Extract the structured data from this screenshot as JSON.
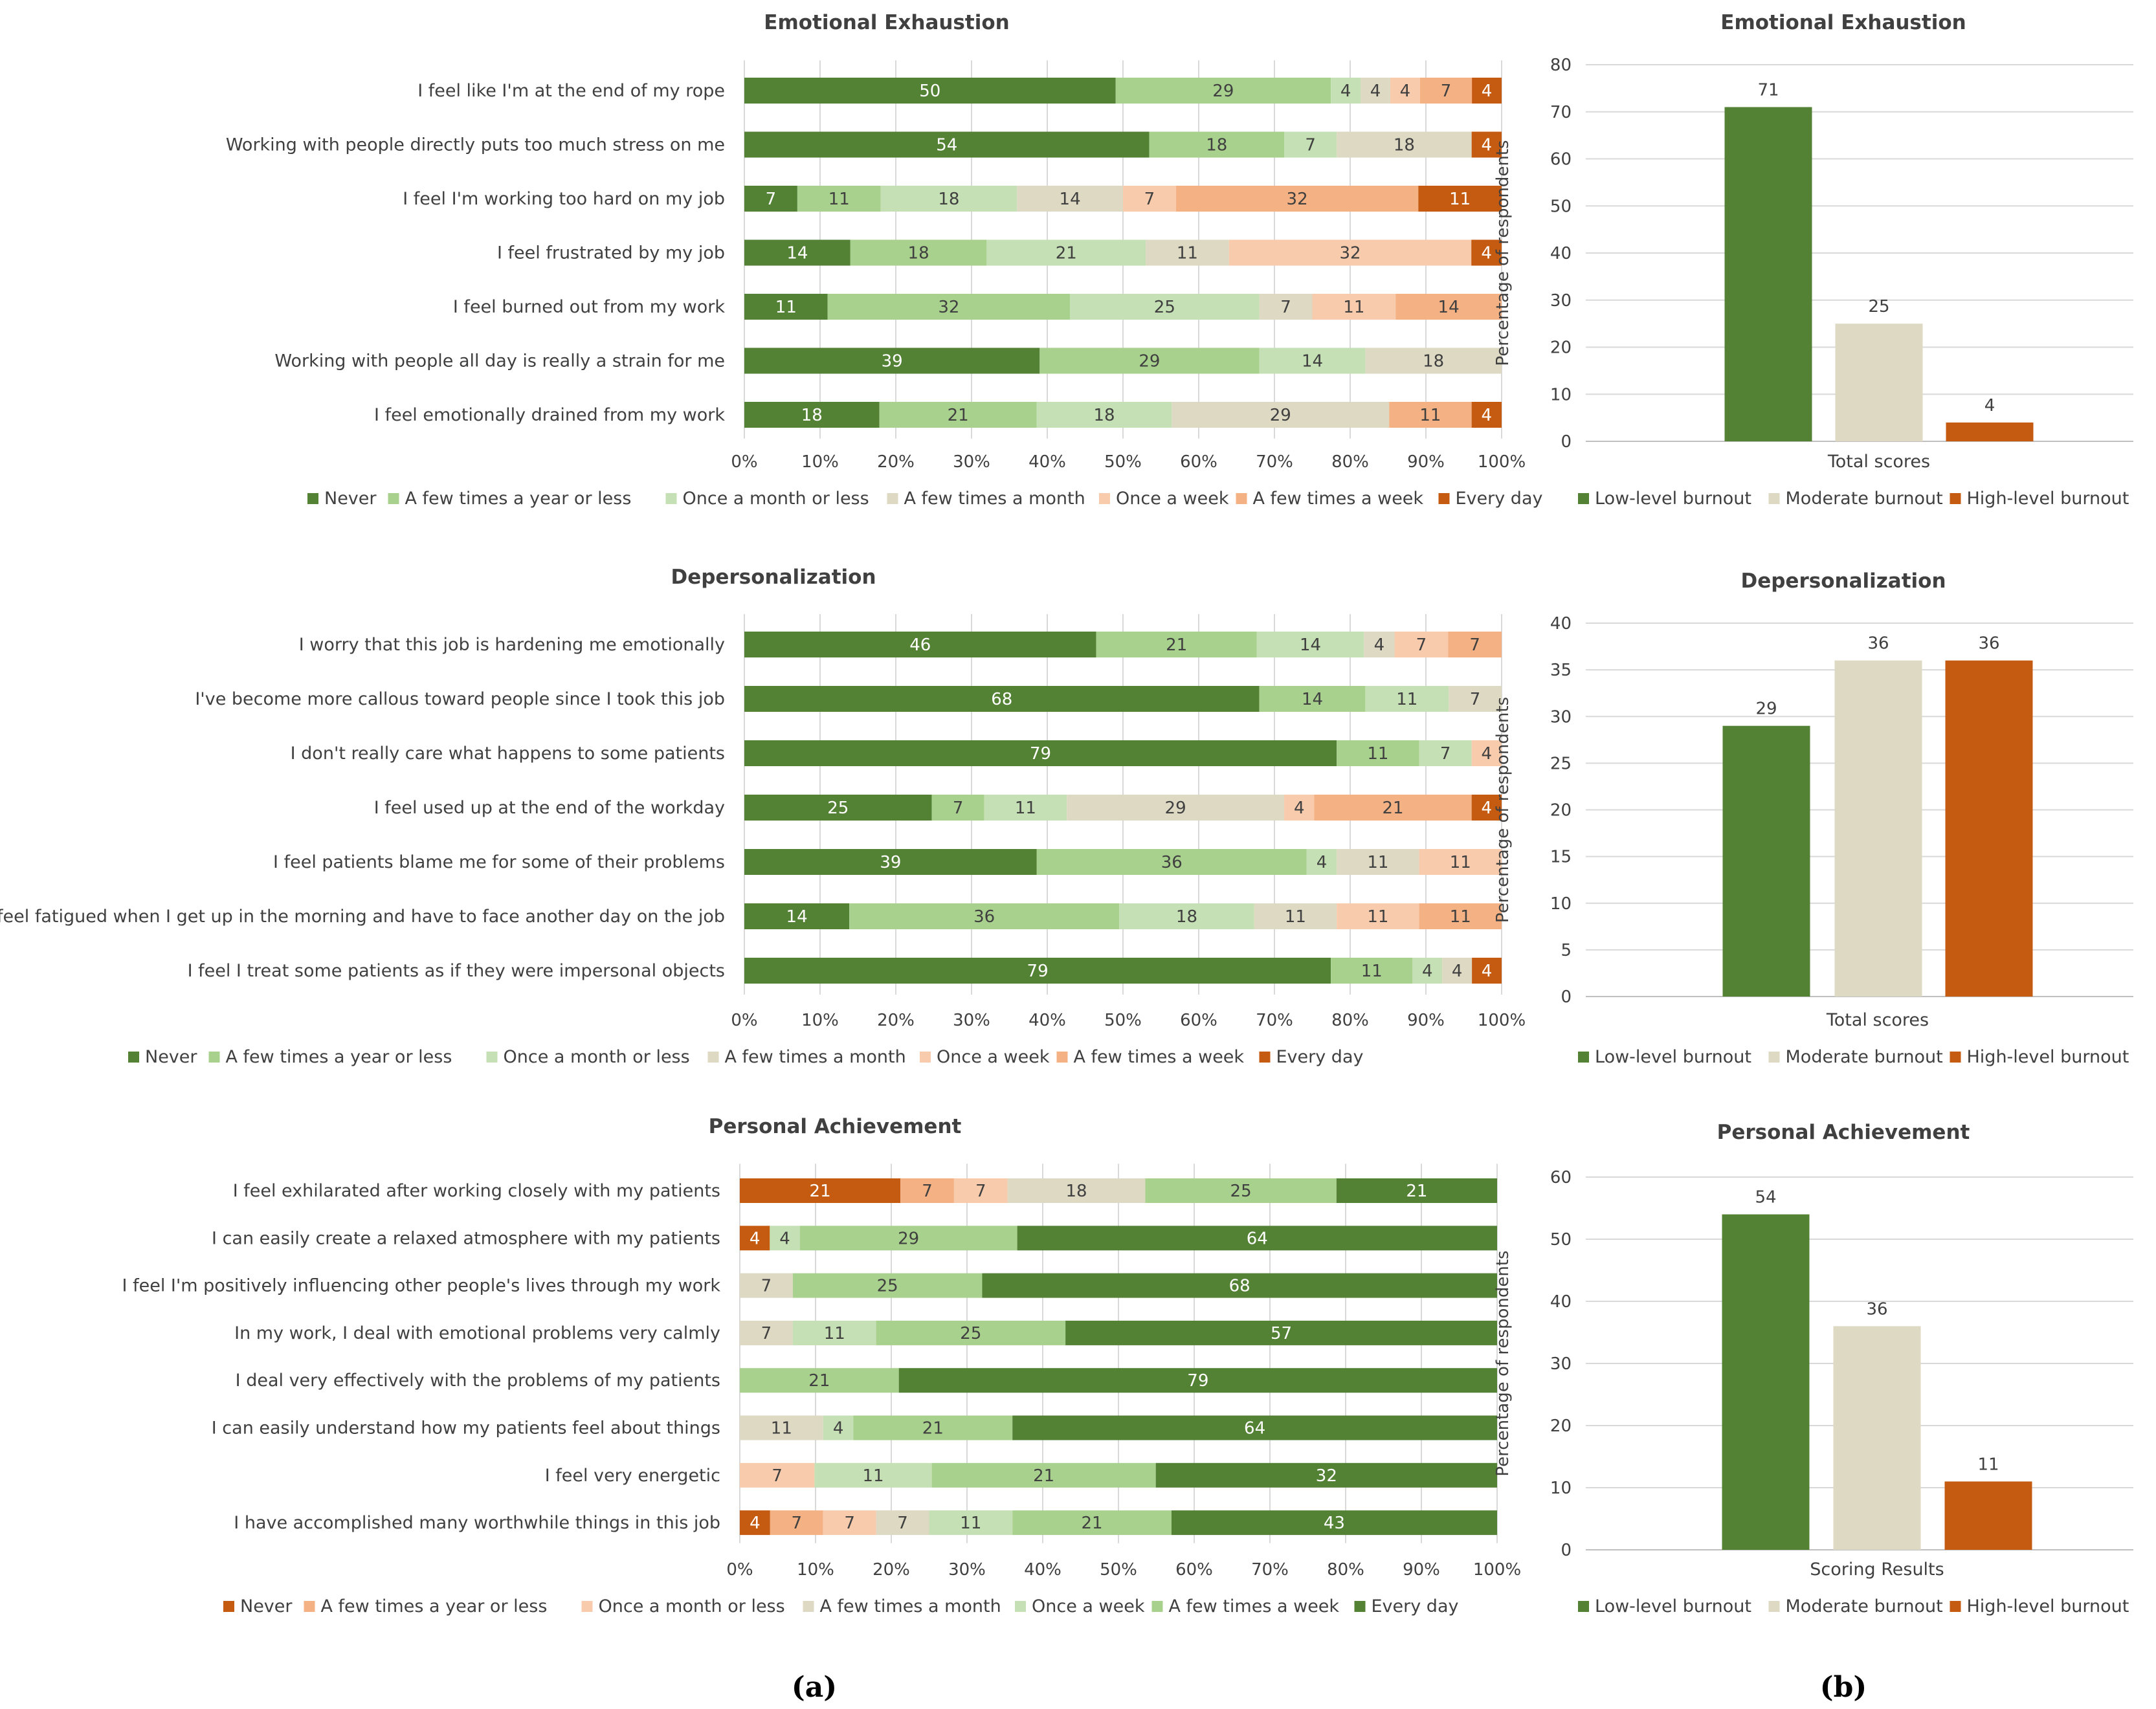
{
  "colors": {
    "c0": "#548235",
    "c1": "#a9d18e",
    "c2": "#c5e0b4",
    "c3": "#ddd9c3",
    "c4": "#f8cbad",
    "c5": "#f4b183",
    "c6": "#c55a11",
    "axis": "#bfbfbf",
    "grid": "#d9d9d9",
    "text": "#404040"
  },
  "panel_labels": {
    "a": "(a)",
    "b": "(b)"
  },
  "chart_data": [
    {
      "id": "ee_items",
      "type": "bar",
      "stacked": true,
      "orientation": "horizontal",
      "percent": true,
      "title": "Emotional Exhaustion",
      "categories": [
        "I feel like I'm at the end of my rope",
        "Working with people directly puts too much stress on me",
        "I feel I'm working too hard on my job",
        "I feel frustrated by my job",
        "I feel burned out from my work",
        "Working with people all day is really a strain for me",
        "I feel emotionally drained from my work"
      ],
      "series": [
        {
          "name": "Never",
          "color": "#548235",
          "values": [
            50,
            54,
            7,
            14,
            11,
            39,
            18
          ]
        },
        {
          "name": "A few times a year or less",
          "color": "#a9d18e",
          "values": [
            29,
            18,
            11,
            18,
            32,
            29,
            21
          ]
        },
        {
          "name": "Once a month or less",
          "color": "#c5e0b4",
          "values": [
            4,
            7,
            18,
            21,
            25,
            14,
            18
          ]
        },
        {
          "name": "A few times a month",
          "color": "#ddd9c3",
          "values": [
            4,
            18,
            14,
            11,
            7,
            18,
            29
          ]
        },
        {
          "name": "Once a week",
          "color": "#f8cbad",
          "values": [
            4,
            0,
            7,
            32,
            11,
            0,
            0
          ]
        },
        {
          "name": "A few times a week",
          "color": "#f4b183",
          "values": [
            7,
            0,
            32,
            0,
            14,
            0,
            11
          ]
        },
        {
          "name": "Every day",
          "color": "#c55a11",
          "values": [
            4,
            4,
            11,
            4,
            0,
            0,
            4
          ]
        }
      ],
      "xticks": [
        "0%",
        "10%",
        "20%",
        "30%",
        "40%",
        "50%",
        "60%",
        "70%",
        "80%",
        "90%",
        "100%"
      ],
      "grid": true,
      "legend": "bottom"
    },
    {
      "id": "dp_items",
      "type": "bar",
      "stacked": true,
      "orientation": "horizontal",
      "percent": true,
      "title": "Depersonalization",
      "categories": [
        "I worry that this job is hardening me emotionally",
        "I've become more callous toward people since I took this job",
        "I don't really care what happens to some patients",
        "I feel used up at the end of the workday",
        "I feel patients blame me for some of their problems",
        "I feel fatigued when I get up in the morning and have to face another day on the job",
        "I feel I treat some patients as if they were impersonal objects"
      ],
      "series": [
        {
          "name": "Never",
          "color": "#548235",
          "values": [
            46,
            68,
            79,
            25,
            39,
            14,
            79
          ]
        },
        {
          "name": "A few times a year or less",
          "color": "#a9d18e",
          "values": [
            21,
            14,
            11,
            7,
            36,
            36,
            11
          ]
        },
        {
          "name": "Once a month or less",
          "color": "#c5e0b4",
          "values": [
            14,
            11,
            7,
            11,
            4,
            18,
            4
          ]
        },
        {
          "name": "A few times a month",
          "color": "#ddd9c3",
          "values": [
            4,
            7,
            0,
            29,
            11,
            11,
            4
          ]
        },
        {
          "name": "Once a week",
          "color": "#f8cbad",
          "values": [
            7,
            0,
            4,
            4,
            11,
            11,
            0
          ]
        },
        {
          "name": "A few times a week",
          "color": "#f4b183",
          "values": [
            7,
            0,
            0,
            21,
            0,
            11,
            0
          ]
        },
        {
          "name": "Every day",
          "color": "#c55a11",
          "values": [
            0,
            0,
            0,
            4,
            0,
            0,
            4
          ]
        }
      ],
      "xticks": [
        "0%",
        "10%",
        "20%",
        "30%",
        "40%",
        "50%",
        "60%",
        "70%",
        "80%",
        "90%",
        "100%"
      ],
      "grid": true,
      "legend": "bottom"
    },
    {
      "id": "pa_items",
      "type": "bar",
      "stacked": true,
      "orientation": "horizontal",
      "percent": true,
      "title": "Personal Achievement",
      "categories": [
        "I feel exhilarated after working closely with my patients",
        "I can easily create a relaxed atmosphere with my patients",
        "I feel I'm positively influencing other people's lives through my work",
        "In my work, I deal with emotional problems very calmly",
        "I deal very effectively with the problems of my patients",
        "I can easily understand how my patients feel about things",
        "I feel very energetic",
        "I have accomplished many worthwhile things in this job"
      ],
      "series": [
        {
          "name": "Never",
          "color": "#c55a11",
          "values": [
            21,
            4,
            0,
            0,
            0,
            0,
            0,
            4
          ]
        },
        {
          "name": "A few times a year or less",
          "color": "#f4b183",
          "values": [
            7,
            0,
            0,
            0,
            0,
            0,
            0,
            7
          ]
        },
        {
          "name": "Once a month or less",
          "color": "#f8cbad",
          "values": [
            7,
            0,
            0,
            0,
            0,
            0,
            7,
            7
          ]
        },
        {
          "name": "A few times a month",
          "color": "#ddd9c3",
          "values": [
            18,
            0,
            7,
            7,
            0,
            11,
            0,
            7
          ]
        },
        {
          "name": "Once a week",
          "color": "#c5e0b4",
          "values": [
            0,
            4,
            0,
            11,
            0,
            4,
            11,
            11
          ]
        },
        {
          "name": "A few times a week",
          "color": "#a9d18e",
          "values": [
            25,
            29,
            25,
            25,
            21,
            21,
            21,
            21
          ]
        },
        {
          "name": "Every day",
          "color": "#548235",
          "values": [
            21,
            64,
            68,
            57,
            79,
            64,
            32,
            43
          ]
        }
      ],
      "extra_segments_note": "",
      "xticks": [
        "0%",
        "10%",
        "20%",
        "30%",
        "40%",
        "50%",
        "60%",
        "70%",
        "80%",
        "90%",
        "100%"
      ],
      "grid": true,
      "legend": "bottom"
    },
    {
      "id": "ee_total",
      "type": "bar",
      "title": "Emotional Exhaustion",
      "categories": [
        "Total scores"
      ],
      "ylabel": "Percentage of respondents",
      "ylim": [
        0,
        80
      ],
      "yticks": [
        0,
        10,
        20,
        30,
        40,
        50,
        60,
        70,
        80
      ],
      "series": [
        {
          "name": "Low-level burnout",
          "color": "#548235",
          "values": [
            71
          ]
        },
        {
          "name": "Moderate burnout",
          "color": "#ddd9c3",
          "values": [
            25
          ]
        },
        {
          "name": "High-level burnout",
          "color": "#c55a11",
          "values": [
            4
          ]
        }
      ],
      "grid": true,
      "legend": "bottom"
    },
    {
      "id": "dp_total",
      "type": "bar",
      "title": "Depersonalization",
      "categories": [
        "Total scores"
      ],
      "ylabel": "Percentage of respondents",
      "ylim": [
        0,
        40
      ],
      "yticks": [
        0,
        5,
        10,
        15,
        20,
        25,
        30,
        35,
        40
      ],
      "series": [
        {
          "name": "Low-level burnout",
          "color": "#548235",
          "values": [
            29
          ]
        },
        {
          "name": "Moderate burnout",
          "color": "#ddd9c3",
          "values": [
            36
          ]
        },
        {
          "name": "High-level burnout",
          "color": "#c55a11",
          "values": [
            36
          ]
        }
      ],
      "grid": true,
      "legend": "bottom"
    },
    {
      "id": "pa_total",
      "type": "bar",
      "title": "Personal Achievement",
      "categories": [
        "Scoring Results"
      ],
      "ylabel": "Percentage of respondents",
      "ylim": [
        0,
        60
      ],
      "yticks": [
        0,
        10,
        20,
        30,
        40,
        50,
        60
      ],
      "series": [
        {
          "name": "Low-level burnout",
          "color": "#548235",
          "values": [
            54
          ]
        },
        {
          "name": "Moderate burnout",
          "color": "#ddd9c3",
          "values": [
            36
          ]
        },
        {
          "name": "High-level burnout",
          "color": "#c55a11",
          "values": [
            11
          ]
        }
      ],
      "grid": true,
      "legend": "bottom"
    }
  ]
}
